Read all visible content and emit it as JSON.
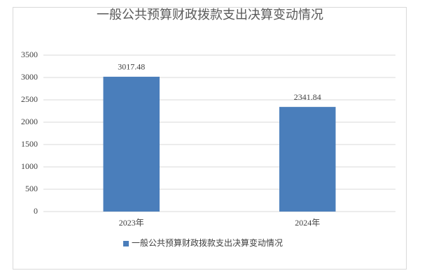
{
  "chart_data": {
    "type": "bar",
    "title": "一般公共预算财政拨款支出决算变动情况",
    "categories": [
      "2023年",
      "2024年"
    ],
    "series": [
      {
        "name": "一般公共预算财政拨款支出决算变动情况",
        "color": "#4a7ebb",
        "values": [
          3017.48,
          2341.84
        ]
      }
    ],
    "ylim": [
      0,
      3500
    ],
    "yticks": [
      0,
      500,
      1000,
      1500,
      2000,
      2500,
      3000,
      3500
    ],
    "grid": true,
    "legend": "bottom"
  }
}
